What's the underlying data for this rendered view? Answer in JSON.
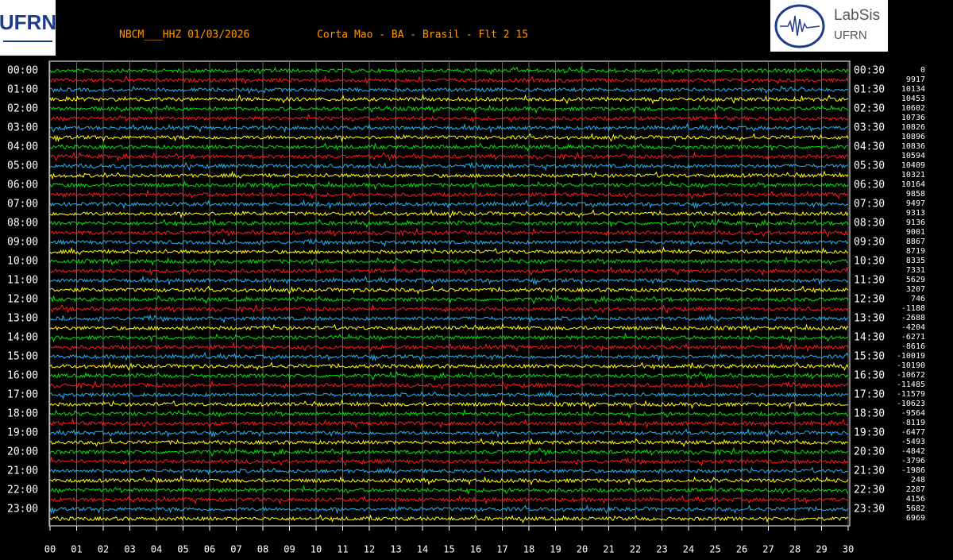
{
  "header": {
    "logo_left": "UFRN",
    "logo_right_title": "LabSis",
    "logo_right_subtitle": "UFRN"
  },
  "chart_data": {
    "type": "helicorder",
    "title": "NBCM___HHZ 01/03/2026",
    "subtitle": "Corta Mao - BA - Brasil - Flt 2 15",
    "trace_colors": [
      "#00e600",
      "#ff1a1a",
      "#22b4ea",
      "#ffff00"
    ],
    "left_labels": [
      "00:00",
      "01:00",
      "02:00",
      "03:00",
      "04:00",
      "05:00",
      "06:00",
      "07:00",
      "08:00",
      "09:00",
      "10:00",
      "11:00",
      "12:00",
      "13:00",
      "14:00",
      "15:00",
      "16:00",
      "17:00",
      "18:00",
      "19:00",
      "20:00",
      "21:00",
      "22:00",
      "23:00"
    ],
    "right_labels": [
      "00:30",
      "01:30",
      "02:30",
      "03:30",
      "04:30",
      "05:30",
      "06:30",
      "07:30",
      "08:30",
      "09:30",
      "10:30",
      "11:30",
      "12:30",
      "13:30",
      "14:30",
      "15:30",
      "16:30",
      "17:30",
      "18:30",
      "19:30",
      "20:30",
      "21:30",
      "22:30",
      "23:30"
    ],
    "offsets": [
      0,
      9917,
      10134,
      10453,
      10602,
      10736,
      10826,
      10896,
      10836,
      10594,
      10409,
      10321,
      10164,
      9858,
      9497,
      9313,
      9136,
      9001,
      8867,
      8719,
      8335,
      7331,
      5629,
      3207,
      746,
      -1188,
      -2688,
      -4204,
      -6271,
      -8616,
      -10019,
      -10190,
      -10672,
      -11485,
      -11579,
      -10623,
      -9564,
      -8119,
      -6477,
      -5493,
      -4842,
      -3796,
      -1986,
      248,
      2287,
      4156,
      5682,
      6969
    ],
    "xlim": [
      0,
      30
    ],
    "xticks": [
      {
        "value": 0,
        "label": "00"
      },
      {
        "value": 1,
        "label": "01"
      },
      {
        "value": 2,
        "label": "02"
      },
      {
        "value": 3,
        "label": "03"
      },
      {
        "value": 4,
        "label": "04"
      },
      {
        "value": 5,
        "label": "05"
      },
      {
        "value": 6,
        "label": "06"
      },
      {
        "value": 7,
        "label": "07"
      },
      {
        "value": 8,
        "label": "08"
      },
      {
        "value": 9,
        "label": "09"
      },
      {
        "value": 10,
        "label": "10"
      },
      {
        "value": 11,
        "label": "11"
      },
      {
        "value": 12,
        "label": "12"
      },
      {
        "value": 13,
        "label": "13"
      },
      {
        "value": 14,
        "label": "14"
      },
      {
        "value": 15,
        "label": "15"
      },
      {
        "value": 16,
        "label": "16"
      },
      {
        "value": 17,
        "label": "17"
      },
      {
        "value": 18,
        "label": "18"
      },
      {
        "value": 19,
        "label": "19"
      },
      {
        "value": 20,
        "label": "20"
      },
      {
        "value": 21,
        "label": "21"
      },
      {
        "value": 22,
        "label": "22"
      },
      {
        "value": 23,
        "label": "23"
      },
      {
        "value": 24,
        "label": "24"
      },
      {
        "value": 25,
        "label": "25"
      },
      {
        "value": 26,
        "label": "26"
      },
      {
        "value": 27,
        "label": "27"
      },
      {
        "value": 28,
        "label": "28"
      },
      {
        "value": 29,
        "label": "29"
      },
      {
        "value": 30,
        "label": "30"
      }
    ],
    "grid": true
  }
}
